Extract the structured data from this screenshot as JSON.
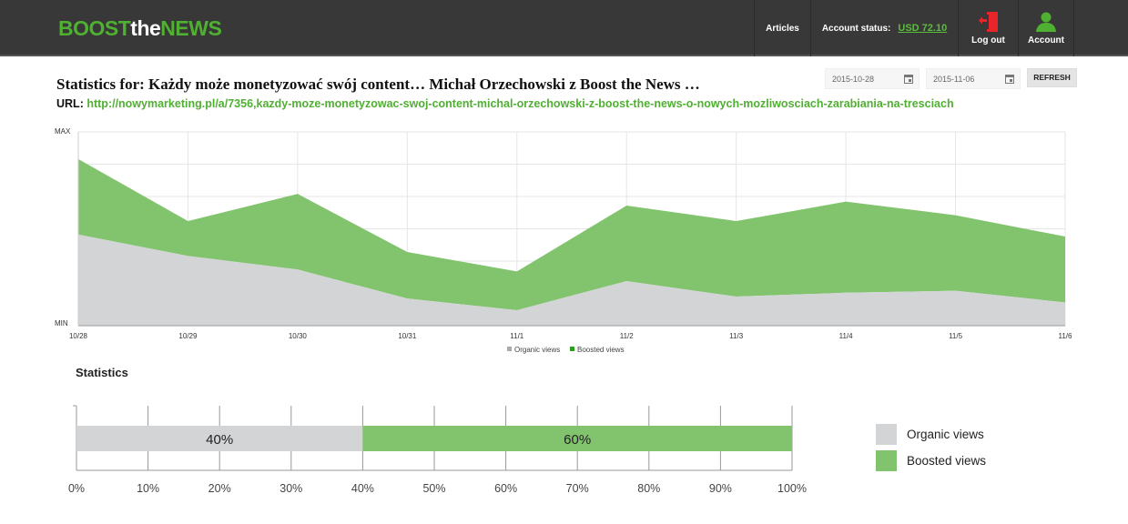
{
  "header": {
    "logo": {
      "boost": "BOOST",
      "the": "the",
      "news": "NEWS"
    },
    "articles": "Articles",
    "account_status_label": "Account status:",
    "account_status_value": "USD 72.10",
    "logout": "Log out",
    "account": "Account"
  },
  "page": {
    "title": "Statistics for: Każdy może monetyzować swój content… Michał Orzechowski z Boost the News …",
    "url_label": "URL:",
    "url": "http://nowymarketing.pl/a/7356,kazdy-moze-monetyzowac-swoj-content-michal-orzechowski-z-boost-the-news-o-nowych-mozliwosciach-zarabiania-na-tresciach"
  },
  "filters": {
    "date_from": "2015-10-28",
    "date_to": "2015-11-06",
    "refresh": "REFRESH"
  },
  "statistics_title": "Statistics",
  "colors": {
    "organic": "#d3d4d6",
    "boosted": "#82c46e",
    "legend_boosted": "#2a9d1a",
    "accent": "#4fb031"
  },
  "chart_data": [
    {
      "type": "area",
      "stacked": true,
      "categories": [
        "10/28",
        "10/29",
        "10/30",
        "10/31",
        "11/1",
        "11/2",
        "11/3",
        "11/4",
        "11/5",
        "11/6"
      ],
      "series": [
        {
          "name": "Organic views",
          "values": [
            47,
            36,
            29,
            14,
            8,
            23,
            15,
            17,
            18,
            12
          ]
        },
        {
          "name": "Boosted views",
          "values": [
            39,
            18,
            39,
            24,
            20,
            39,
            39,
            47,
            39,
            34
          ]
        }
      ],
      "ylabel_top": "MAX",
      "ylabel_bottom": "MIN",
      "ylim": [
        0,
        100
      ],
      "grid": true,
      "legend": "bottom-right"
    },
    {
      "type": "bar",
      "orientation": "horizontal",
      "stacked": true,
      "series": [
        {
          "name": "Organic views",
          "value": 40,
          "label": "40%"
        },
        {
          "name": "Boosted views",
          "value": 60,
          "label": "60%"
        }
      ],
      "ticks": [
        "0%",
        "10%",
        "20%",
        "30%",
        "40%",
        "50%",
        "60%",
        "70%",
        "80%",
        "90%",
        "100%"
      ],
      "xlim": [
        0,
        100
      ],
      "legend": "right"
    }
  ]
}
